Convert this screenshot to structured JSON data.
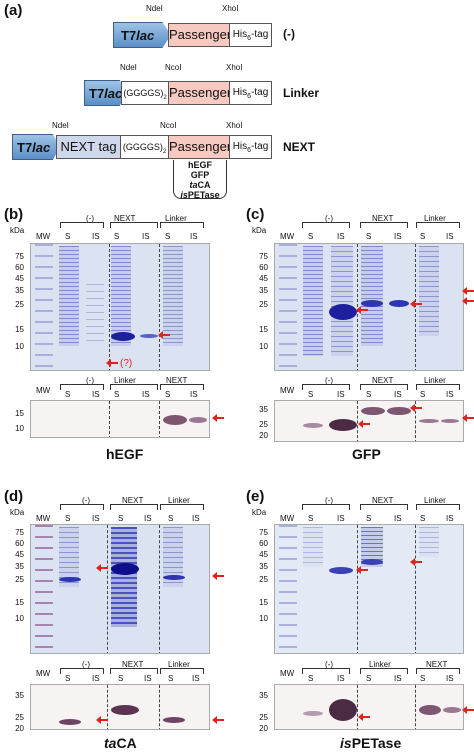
{
  "panel_a": {
    "letter": "(a)",
    "promoter": "T7lac",
    "promoter_main": "T7",
    "promoter_italic": "lac",
    "ndei": "NdeI",
    "ncoi": "NcoI",
    "xhoi": "XhoI",
    "passenger": "Passenger",
    "his_tag": "His",
    "his_sub": "6",
    "his_suffix": "-tag",
    "linker": "(GGGGS)",
    "linker_sub": "2",
    "next_tag": "NEXT tag",
    "constructs": [
      "(-)",
      "Linker",
      "NEXT"
    ],
    "passengers": [
      "hEGF",
      "GFP",
      "taCA",
      "isPETase"
    ]
  },
  "panels": [
    {
      "letter": "(b)",
      "protein": "hEGF",
      "top_groups": [
        "(-)",
        "NEXT",
        "Linker"
      ],
      "bottom_groups": [
        "(-)",
        "Linker",
        "NEXT"
      ],
      "question": "(?)"
    },
    {
      "letter": "(c)",
      "protein": "GFP",
      "top_groups": [
        "(-)",
        "NEXT",
        "Linker"
      ],
      "bottom_groups": [
        "(-)",
        "NEXT",
        "Linker"
      ]
    },
    {
      "letter": "(d)",
      "protein_italic": "ta",
      "protein_rest": "CA",
      "top_groups": [
        "(-)",
        "NEXT",
        "Linker"
      ],
      "bottom_groups": [
        "(-)",
        "NEXT",
        "Linker"
      ]
    },
    {
      "letter": "(e)",
      "protein_italic": "is",
      "protein_rest": "PETase",
      "top_groups": [
        "(-)",
        "NEXT",
        "Linker"
      ],
      "bottom_groups": [
        "(-)",
        "Linker",
        "NEXT"
      ]
    }
  ],
  "labels": {
    "mw": "MW",
    "s": "S",
    "is": "IS",
    "kda": "kDa"
  },
  "markers_top": [
    "75",
    "60",
    "45",
    "35",
    "25",
    "15",
    "10"
  ],
  "markers_b_bottom": [
    "15",
    "10"
  ],
  "markers_c_bottom": [
    "35",
    "25",
    "20"
  ],
  "markers_de_bottom": [
    "35",
    "25",
    "20"
  ],
  "colors": {
    "arrow": "#e0231b",
    "coomassie": "#2a2fb0",
    "western": "#6b3b5e"
  }
}
